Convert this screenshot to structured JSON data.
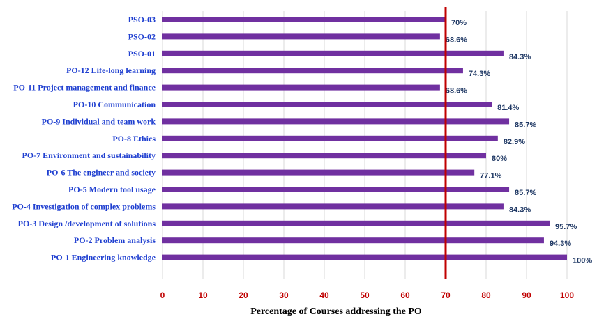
{
  "chart_data": {
    "type": "bar",
    "orientation": "horizontal",
    "categories": [
      "PSO-03",
      "PSO-02",
      "PSO-01",
      "PO-12 Life-long learning",
      "PO-11 Project management and finance",
      "PO-10 Communication",
      "PO-9 Individual and team work",
      "PO-8 Ethics",
      "PO-7 Environment and sustainability",
      "PO-6 The engineer and society",
      "PO-5 Modern tool usage",
      "PO-4 Investigation of complex problems",
      "PO-3 Design /development of solutions",
      "PO-2 Problem analysis",
      "PO-1 Engineering knowledge"
    ],
    "values": [
      70,
      68.6,
      84.3,
      74.3,
      68.6,
      81.4,
      85.7,
      82.9,
      80,
      77.1,
      85.7,
      84.3,
      95.7,
      94.3,
      100
    ],
    "value_labels": [
      "70%",
      "68.6%",
      "84.3%",
      "74.3%",
      "68.6%",
      "81.4%",
      "85.7%",
      "82.9%",
      "80%",
      "77.1%",
      "85.7%",
      "84.3%",
      "95.7%",
      "94.3%",
      "100%"
    ],
    "xlabel": "Percentage of Courses addressing the PO",
    "ylabel": "",
    "xlim": [
      0,
      100
    ],
    "x_ticks": [
      0,
      10,
      20,
      30,
      40,
      50,
      60,
      70,
      80,
      90,
      100
    ],
    "reference_line": 70,
    "grid": "vertical",
    "legend": "none",
    "colors": {
      "bar": "#7030a0",
      "category_label": "#1f3fd0",
      "value_label": "#1f3864",
      "tick_label": "#c00000",
      "reference_line": "#c00000",
      "grid": "#d9d9d9",
      "axis_title": "#000000"
    }
  }
}
